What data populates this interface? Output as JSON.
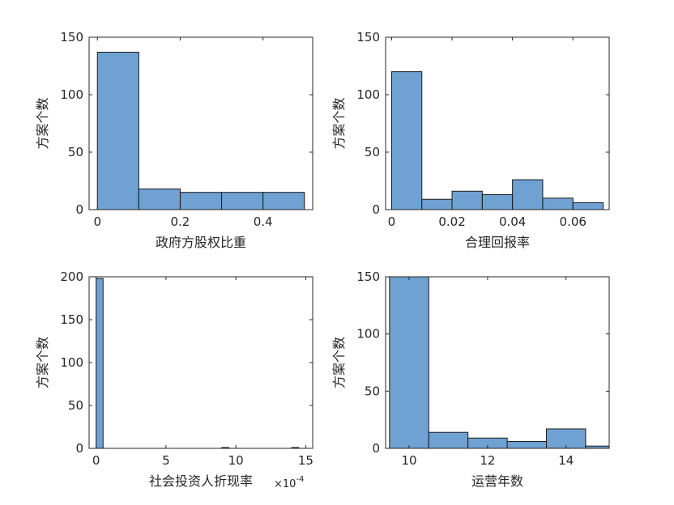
{
  "figure": {
    "background": "#ffffff",
    "bar_fill": "#6fa1d2",
    "bar_stroke": "#1a1a1a",
    "axis_color": "#262626"
  },
  "chart_data": [
    {
      "type": "bar",
      "histogram": true,
      "xlabel": "政府方股权比重",
      "ylabel": "方案个数",
      "xlim": [
        -0.02,
        0.52
      ],
      "ylim": [
        0,
        150
      ],
      "xticks": [
        0,
        0.2,
        0.4
      ],
      "xtick_labels": [
        "0",
        "0.2",
        "0.4"
      ],
      "yticks": [
        0,
        50,
        100,
        150
      ],
      "ytick_labels": [
        "0",
        "50",
        "100",
        "150"
      ],
      "bin_edges": [
        0,
        0.1,
        0.2,
        0.3,
        0.4,
        0.5
      ],
      "values": [
        137,
        18,
        15,
        15,
        15
      ],
      "exponent_label": ""
    },
    {
      "type": "bar",
      "histogram": true,
      "xlabel": "合理回报率",
      "ylabel": "方案个数",
      "xlim": [
        -0.002,
        0.072
      ],
      "ylim": [
        0,
        150
      ],
      "xticks": [
        0,
        0.02,
        0.04,
        0.06
      ],
      "xtick_labels": [
        "0",
        "0.02",
        "0.04",
        "0.06"
      ],
      "yticks": [
        0,
        50,
        100,
        150
      ],
      "ytick_labels": [
        "0",
        "50",
        "100",
        "150"
      ],
      "bin_edges": [
        0,
        0.01,
        0.02,
        0.03,
        0.04,
        0.05,
        0.06,
        0.07
      ],
      "values": [
        120,
        9,
        16,
        13,
        26,
        10,
        6
      ],
      "exponent_label": ""
    },
    {
      "type": "bar",
      "histogram": true,
      "xlabel": "社会投资人折现率",
      "ylabel": "方案个数",
      "xlim": [
        -0.5,
        15.5
      ],
      "ylim": [
        0,
        200
      ],
      "xticks": [
        0,
        5,
        10,
        15
      ],
      "xtick_labels": [
        "0",
        "5",
        "10",
        "15"
      ],
      "yticks": [
        0,
        50,
        100,
        150,
        200
      ],
      "ytick_labels": [
        "0",
        "50",
        "100",
        "150",
        "200"
      ],
      "bin_edges": [
        0,
        0.5,
        1,
        1.5,
        2,
        2.5,
        3,
        3.5,
        4,
        4.5,
        5,
        5.5,
        6,
        6.5,
        7,
        7.5,
        8,
        8.5,
        9,
        9.5,
        10,
        10.5,
        11,
        11.5,
        12,
        12.5,
        13,
        13.5,
        14,
        14.5
      ],
      "values": [
        198,
        0,
        0,
        0,
        0,
        0,
        0,
        0,
        0,
        0,
        0,
        0,
        0,
        0,
        0,
        0,
        0,
        0,
        1,
        0,
        0,
        0,
        0,
        0,
        0,
        0,
        0,
        0,
        1
      ],
      "exponent_label": "×10",
      "exponent_power": "-4"
    },
    {
      "type": "bar",
      "histogram": true,
      "xlabel": "运营年数",
      "ylabel": "方案个数",
      "xlim": [
        9.4,
        15.1
      ],
      "ylim": [
        0,
        150
      ],
      "xticks": [
        10,
        12,
        14
      ],
      "xtick_labels": [
        "10",
        "12",
        "14"
      ],
      "yticks": [
        0,
        50,
        100,
        150
      ],
      "ytick_labels": [
        "0",
        "50",
        "100",
        "150"
      ],
      "bin_edges": [
        9.5,
        10.5,
        11.5,
        12.5,
        13.5,
        14.5,
        15.5
      ],
      "values": [
        151,
        14,
        9,
        6,
        17,
        2
      ],
      "exponent_label": ""
    }
  ]
}
